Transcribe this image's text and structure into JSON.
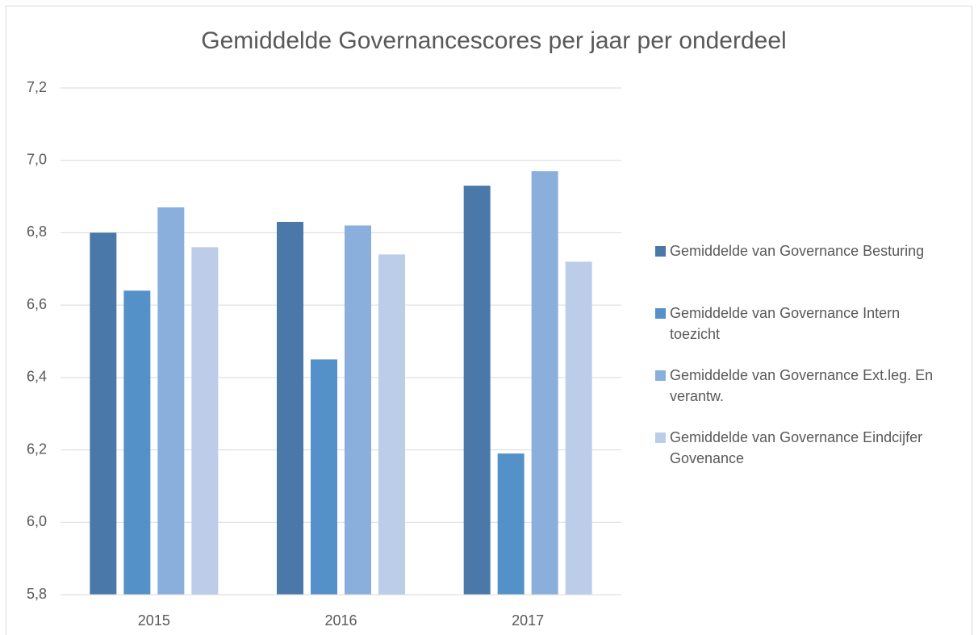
{
  "chart_data": {
    "type": "bar",
    "title": "Gemiddelde Governancescores per jaar per onderdeel",
    "categories": [
      "2015",
      "2016",
      "2017"
    ],
    "series": [
      {
        "name": "Gemiddelde van Governance Besturing",
        "color": "#4a79a9",
        "values": [
          6.8,
          6.83,
          6.93
        ]
      },
      {
        "name": "Gemiddelde van Governance Intern toezicht",
        "color": "#5591c9",
        "values": [
          6.64,
          6.45,
          6.19
        ]
      },
      {
        "name": "Gemiddelde van Governance Ext.leg. En verantw.",
        "color": "#8aafdc",
        "values": [
          6.87,
          6.82,
          6.97
        ]
      },
      {
        "name": "Gemiddelde van Governance Eindcijfer Govenance",
        "color": "#bccde9",
        "values": [
          6.76,
          6.74,
          6.72
        ]
      }
    ],
    "ylim": [
      5.8,
      7.2
    ],
    "yticks": [
      {
        "value": 5.8,
        "label": "5,8"
      },
      {
        "value": 6.0,
        "label": "6,0"
      },
      {
        "value": 6.2,
        "label": "6,2"
      },
      {
        "value": 6.4,
        "label": "6,4"
      },
      {
        "value": 6.6,
        "label": "6,6"
      },
      {
        "value": 6.8,
        "label": "6,8"
      },
      {
        "value": 7.0,
        "label": "7,0"
      },
      {
        "value": 7.2,
        "label": "7,2"
      }
    ],
    "grid": true,
    "legend": "right"
  }
}
